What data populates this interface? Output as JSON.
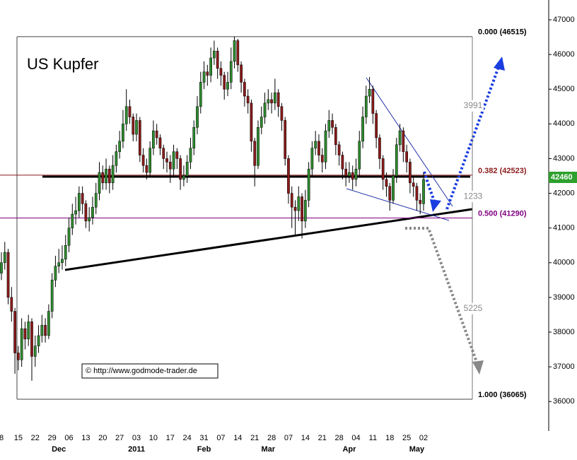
{
  "chart_data": {
    "type": "candlestick",
    "title": "US Kupfer",
    "annotation": "© http://www.godmode-trader.de",
    "categories": [
      "8",
      null,
      null,
      null,
      null,
      "15",
      null,
      null,
      null,
      null,
      "22",
      null,
      null,
      null,
      null,
      "29",
      null,
      null,
      null,
      null,
      "06",
      null,
      null,
      null,
      null,
      "13",
      null,
      null,
      null,
      null,
      "20",
      null,
      null,
      null,
      null,
      "27",
      null,
      null,
      null,
      null,
      "03",
      null,
      null,
      null,
      null,
      "10",
      null,
      null,
      null,
      null,
      "17",
      null,
      null,
      null,
      null,
      "24",
      null,
      null,
      null,
      null,
      "31",
      null,
      null,
      null,
      null,
      "07",
      null,
      null,
      null,
      null,
      "14",
      null,
      null,
      null,
      null,
      "21",
      null,
      null,
      null,
      null,
      "28",
      null,
      null,
      null,
      null,
      "07",
      null,
      null,
      null,
      null,
      "14",
      null,
      null,
      null,
      null,
      "21",
      null,
      null,
      null,
      null,
      "28",
      null,
      null,
      null,
      null,
      "04",
      null,
      null,
      null,
      null,
      "11",
      null,
      null,
      null,
      null,
      "18",
      null,
      null,
      null,
      null,
      "25",
      null,
      null,
      null,
      null,
      "02"
    ],
    "months": [
      null,
      null,
      null,
      null,
      null,
      null,
      null,
      null,
      null,
      null,
      null,
      null,
      null,
      null,
      null,
      null,
      null,
      "Dec",
      null,
      null,
      null,
      null,
      null,
      null,
      null,
      null,
      null,
      null,
      null,
      null,
      null,
      null,
      null,
      null,
      null,
      null,
      null,
      null,
      null,
      null,
      "2011",
      null,
      null,
      null,
      null,
      null,
      null,
      null,
      null,
      null,
      null,
      null,
      null,
      null,
      null,
      null,
      null,
      null,
      null,
      null,
      "Feb",
      null,
      null,
      null,
      null,
      null,
      null,
      null,
      null,
      null,
      null,
      null,
      null,
      null,
      null,
      null,
      null,
      null,
      null,
      "Mar",
      null,
      null,
      null,
      null,
      null,
      null,
      null,
      null,
      null,
      null,
      null,
      null,
      null,
      null,
      null,
      null,
      null,
      null,
      null,
      null,
      null,
      null,
      null,
      "Apr",
      null,
      null,
      null,
      null,
      null,
      null,
      null,
      null,
      null,
      null,
      null,
      null,
      null,
      null,
      null,
      null,
      null,
      null,
      null,
      "May",
      null,
      null
    ],
    "open": [
      39700,
      40000,
      40300,
      39000,
      38600,
      37400,
      37200,
      38100,
      37800,
      38300,
      37300,
      37600,
      37900,
      38200,
      37900,
      38600,
      39500,
      39900,
      40000,
      40100,
      40500,
      41000,
      41400,
      41500,
      42000,
      41700,
      41200,
      41300,
      41600,
      42000,
      42600,
      42300,
      42700,
      42300,
      42800,
      43200,
      43500,
      44000,
      44500,
      44200,
      43700,
      44100,
      43100,
      42800,
      42600,
      43300,
      43800,
      43600,
      43300,
      43000,
      42900,
      42700,
      43200,
      43000,
      42400,
      42500,
      42900,
      43300,
      43900,
      44500,
      45200,
      45500,
      45400,
      45900,
      46100,
      45600,
      45400,
      45000,
      45200,
      45800,
      46400,
      45700,
      45200,
      44800,
      44600,
      43500,
      42800,
      43900,
      44200,
      44600,
      44700,
      44600,
      44900,
      44500,
      44100,
      43000,
      42000,
      41600,
      41500,
      41900,
      41200,
      41800,
      42700,
      43300,
      43500,
      43100,
      42900,
      43800,
      44100,
      43900,
      43400,
      43100,
      42700,
      42500,
      42600,
      42400,
      42700,
      43500,
      44200,
      44800,
      45000,
      44300,
      43600,
      43000,
      42400,
      42200,
      41800,
      42500,
      43400,
      43800,
      43200,
      42900,
      42300,
      42200,
      41800,
      41700
    ],
    "high": [
      40300,
      40600,
      40400,
      39300,
      38700,
      37600,
      38400,
      38300,
      38500,
      38400,
      37900,
      38200,
      38500,
      38400,
      38800,
      39700,
      40200,
      40400,
      40500,
      40800,
      41300,
      41700,
      41900,
      42200,
      42200,
      41800,
      41600,
      41900,
      42300,
      42900,
      42800,
      43000,
      42800,
      43100,
      43400,
      43800,
      44400,
      45000,
      44700,
      44300,
      44300,
      44200,
      43300,
      43000,
      43500,
      44100,
      44000,
      43700,
      43400,
      43200,
      43100,
      43400,
      43300,
      43100,
      42800,
      43100,
      43600,
      44100,
      44800,
      45500,
      45800,
      45700,
      46200,
      46400,
      46200,
      45800,
      45500,
      45500,
      46200,
      46515,
      46450,
      45800,
      45300,
      45000,
      44700,
      43600,
      44100,
      44500,
      44900,
      45000,
      44900,
      45300,
      45000,
      44600,
      44200,
      43100,
      42200,
      41800,
      42200,
      42000,
      42100,
      42900,
      43500,
      43800,
      43700,
      43300,
      44000,
      44400,
      44300,
      44000,
      43500,
      43200,
      42900,
      42900,
      42800,
      43000,
      43800,
      44500,
      45100,
      45350,
      45100,
      44400,
      43700,
      43100,
      42600,
      42300,
      42700,
      43600,
      44000,
      43900,
      43400,
      43000,
      42500,
      42300,
      42000,
      42600
    ],
    "low": [
      39500,
      39800,
      38800,
      38300,
      36800,
      36900,
      37000,
      37500,
      37600,
      36600,
      37000,
      37400,
      37700,
      37700,
      37800,
      38400,
      39300,
      39700,
      39800,
      39900,
      40300,
      40800,
      41100,
      41300,
      41400,
      41000,
      40900,
      41100,
      41400,
      41800,
      42100,
      42100,
      42000,
      42100,
      42600,
      43000,
      43300,
      43800,
      44000,
      43500,
      43500,
      42900,
      42600,
      42400,
      42500,
      43100,
      43400,
      43100,
      42700,
      42600,
      42300,
      42500,
      42700,
      42100,
      42200,
      42300,
      42700,
      43100,
      43700,
      44300,
      45000,
      45100,
      45200,
      45700,
      45300,
      45100,
      44700,
      44800,
      45000,
      45600,
      45500,
      44900,
      44500,
      44300,
      43200,
      42200,
      42700,
      43700,
      44000,
      44400,
      44300,
      44400,
      44200,
      43800,
      42800,
      41700,
      41000,
      40800,
      41200,
      40700,
      41000,
      41600,
      42500,
      43100,
      42900,
      42600,
      42700,
      43600,
      43700,
      43100,
      42800,
      42400,
      42200,
      42300,
      42100,
      42200,
      42500,
      43300,
      44000,
      44600,
      44000,
      43300,
      42700,
      42100,
      41900,
      41500,
      41700,
      42300,
      43200,
      42900,
      42600,
      42000,
      41900,
      41500,
      41400,
      41500
    ],
    "close": [
      40000,
      40300,
      39000,
      38600,
      37400,
      37200,
      38100,
      37800,
      38300,
      37300,
      37600,
      37900,
      38200,
      37900,
      38600,
      39500,
      39900,
      40000,
      40100,
      40500,
      41000,
      41400,
      41500,
      42000,
      41700,
      41200,
      41300,
      41600,
      42000,
      42600,
      42300,
      42700,
      42300,
      42800,
      43200,
      43500,
      44000,
      44500,
      44200,
      43700,
      44100,
      43100,
      42800,
      42600,
      43300,
      43800,
      43600,
      43300,
      43000,
      42900,
      42700,
      43200,
      43000,
      42400,
      42500,
      42900,
      43300,
      43900,
      44500,
      45200,
      45500,
      45400,
      45900,
      46100,
      45600,
      45400,
      45000,
      45200,
      45800,
      46400,
      45700,
      45200,
      44800,
      44600,
      43500,
      42800,
      43900,
      44200,
      44600,
      44700,
      44600,
      44900,
      44500,
      44100,
      43000,
      42000,
      41600,
      41500,
      41900,
      41200,
      41800,
      42700,
      43300,
      43500,
      43100,
      42900,
      43800,
      44100,
      43900,
      43400,
      43100,
      42700,
      42500,
      42600,
      42400,
      42700,
      43500,
      44200,
      44800,
      45000,
      44300,
      43600,
      43000,
      42400,
      42200,
      41800,
      42500,
      43400,
      43800,
      43200,
      42900,
      42300,
      42200,
      41800,
      41700,
      42400
    ],
    "up_color": "#2e8b2e",
    "down_color": "#8b1a1a",
    "ylim": [
      35150,
      47570
    ],
    "yticks": [
      36000,
      37000,
      38000,
      39000,
      40000,
      41000,
      42000,
      43000,
      44000,
      45000,
      46000,
      47000
    ],
    "levels": [
      {
        "value": 46515,
        "label": "0.000 (46515)",
        "color": "#444444"
      },
      {
        "value": 42523,
        "label": "0.382 (42523)",
        "color": "#8b1a1a"
      },
      {
        "value": 41290,
        "label": "0.500 (41290)",
        "color": "#800080"
      },
      {
        "value": 36065,
        "label": "1.000 (36065)",
        "color": "#444444"
      }
    ],
    "ranges": [
      3991,
      1233,
      5225
    ],
    "last_price": 42460
  }
}
